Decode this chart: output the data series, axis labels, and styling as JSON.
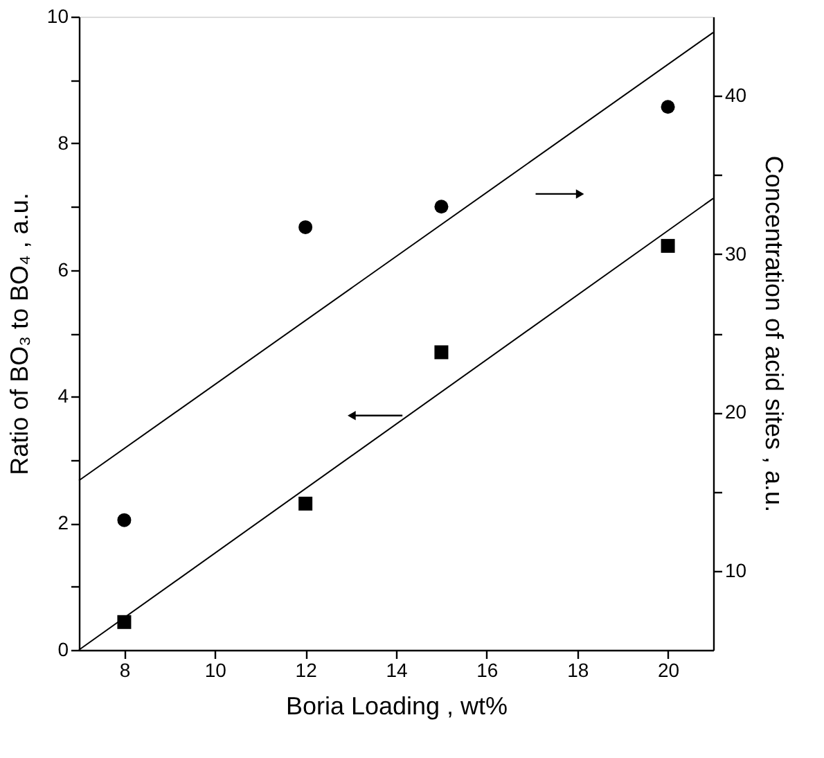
{
  "chart_data": {
    "type": "scatter",
    "xlabel": "Boria Loading , wt%",
    "ylabel": "Ratio of BO₃ to BO₄ , a.u.",
    "y2label": "Concentration of acid sites , a.u.",
    "xlim": [
      7,
      21
    ],
    "xticks": [
      8,
      10,
      12,
      14,
      16,
      18,
      20
    ],
    "ylim": [
      0,
      10
    ],
    "yticks": [
      0,
      {
        "value": 1,
        "label": null
      },
      2,
      {
        "value": 3,
        "label": null
      },
      4,
      {
        "value": 5,
        "label": null
      },
      6,
      {
        "value": 7,
        "label": null
      },
      8,
      {
        "value": 9,
        "label": null
      },
      10
    ],
    "y2lim": [
      5,
      45
    ],
    "y2ticks": [
      10,
      {
        "value": 15,
        "label": null
      },
      20,
      {
        "value": 25,
        "label": null
      },
      30,
      {
        "value": 35,
        "label": null
      },
      40
    ],
    "grid": false,
    "series": [
      {
        "marker": "square",
        "color": "#000000",
        "axis": "y",
        "x": [
          8,
          12,
          15,
          20
        ],
        "values": [
          0.44,
          2.31,
          4.7,
          6.38
        ]
      },
      {
        "marker": "circle",
        "color": "#000000",
        "axis": "y2",
        "x": [
          8,
          12,
          15,
          20
        ],
        "values": [
          13.2,
          31.7,
          33.0,
          39.3
        ]
      },
      {
        "type": "line",
        "color": "#000000",
        "axis": "y",
        "x": [
          7,
          21
        ],
        "values": [
          0,
          7.13
        ]
      },
      {
        "type": "line",
        "color": "#000000",
        "axis": "y2",
        "x": [
          7,
          21
        ],
        "values": [
          15.7,
          44.0
        ]
      }
    ]
  }
}
